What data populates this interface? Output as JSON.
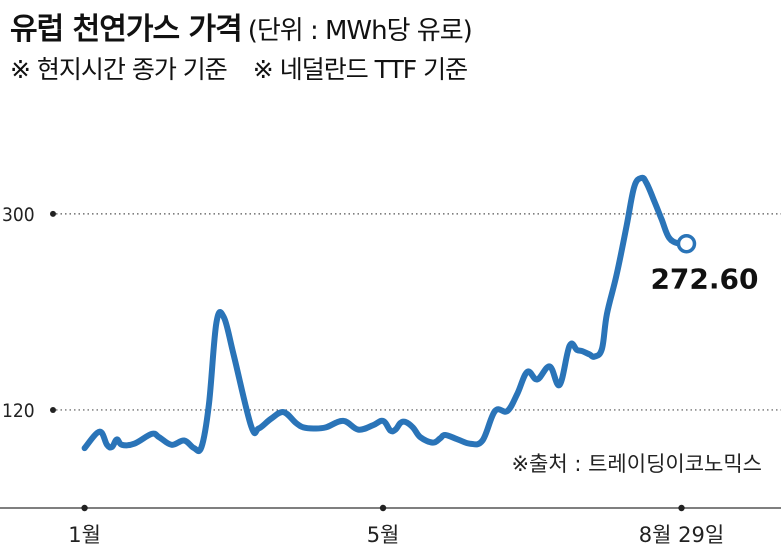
{
  "header": {
    "title": "유럽 천연가스 가격",
    "unit": "(단위 : MWh당 유로)",
    "note1": "※ 현지시간 종가 기준",
    "note2": "※ 네덜란드 TTF 기준"
  },
  "source": "※출처 : 트레이딩이코노믹스",
  "chart_data": {
    "type": "line",
    "title": "유럽 천연가스 가격",
    "ylabel": "",
    "xlabel": "",
    "y_ticks": [
      "300",
      "120"
    ],
    "y_tick_values": [
      300,
      120
    ],
    "x_ticks": [
      "1월",
      "5월",
      "8월 29일"
    ],
    "x_tick_values": [
      0,
      120,
      240
    ],
    "ylim": [
      30,
      340
    ],
    "xlim": [
      -34,
      280
    ],
    "grid": "dotted horizontal at ticks",
    "color": "#2a74b8",
    "end_value": 272.6,
    "end_label": "272.60",
    "series": [
      {
        "x": [
          0,
          6,
          9,
          11,
          13,
          15,
          20,
          27,
          30,
          35,
          40,
          44,
          47,
          50,
          53,
          56,
          60,
          67,
          70,
          75,
          80,
          85,
          88,
          92,
          97,
          104,
          110,
          116,
          120,
          123,
          125,
          127,
          129,
          132,
          135,
          140,
          143,
          145,
          150,
          155,
          160,
          165,
          170,
          174,
          178,
          182,
          187,
          191,
          195,
          198,
          200,
          203,
          205,
          208,
          210,
          214,
          218,
          221,
          224,
          226,
          229,
          232,
          235,
          239,
          242
        ],
        "y": [
          85,
          100,
          88,
          86,
          93,
          88,
          89,
          98,
          95,
          88,
          92,
          85,
          86,
          125,
          200,
          205,
          170,
          105,
          103,
          112,
          118,
          108,
          104,
          103,
          104,
          110,
          102,
          106,
          110,
          101,
          102,
          108,
          109,
          104,
          95,
          90,
          94,
          97,
          93,
          89,
          92,
          119,
          119,
          135,
          155,
          148,
          160,
          143,
          179,
          175,
          174,
          171,
          169,
          176,
          208,
          245,
          290,
          325,
          333,
          328,
          312,
          295,
          278,
          272.6,
          272.6
        ]
      }
    ]
  },
  "colors": {
    "line": "#2a74b8",
    "axis": "#333333",
    "grid": "#555555"
  }
}
